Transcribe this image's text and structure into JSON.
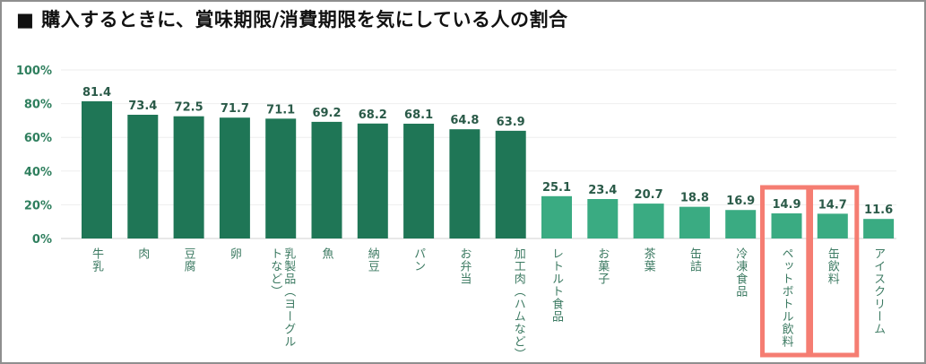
{
  "chart_data": {
    "type": "bar",
    "title": "■ 購入するときに、賞味期限/消費期限を気にしている人の割合",
    "xlabel": "",
    "ylabel": "",
    "ylim": [
      0,
      100
    ],
    "yticks": [
      "0%",
      "20%",
      "40%",
      "60%",
      "80%",
      "100%"
    ],
    "grid": true,
    "categories": [
      "牛乳",
      "肉",
      "豆腐",
      "卵",
      "乳製品（ヨーグルトなど）",
      "魚",
      "納豆",
      "パン",
      "お弁当",
      "加工肉（ハムなど）",
      "レトルト食品",
      "お菓子",
      "茶葉",
      "缶詰",
      "冷凍食品",
      "ペットボトル飲料",
      "缶飲料",
      "アイスクリーム"
    ],
    "values": [
      81.4,
      73.4,
      72.5,
      71.7,
      71.1,
      69.2,
      68.2,
      68.1,
      64.8,
      63.9,
      25.1,
      23.4,
      20.7,
      18.8,
      16.9,
      14.9,
      14.7,
      11.6
    ],
    "value_labels": [
      "81.4",
      "73.4",
      "72.5",
      "71.7",
      "71.1",
      "69.2",
      "68.2",
      "68.1",
      "64.8",
      "63.9",
      "25.1",
      "23.4",
      "20.7",
      "18.8",
      "16.9",
      "14.9",
      "14.7",
      "11.6"
    ],
    "highlighted": [
      "ペットボトル飲料",
      "缶飲料"
    ],
    "colors": {
      "high": "#1f7656",
      "low": "#3aab82",
      "highlight_box": "#f57d72",
      "axis_text": "#2f7f5e"
    }
  }
}
